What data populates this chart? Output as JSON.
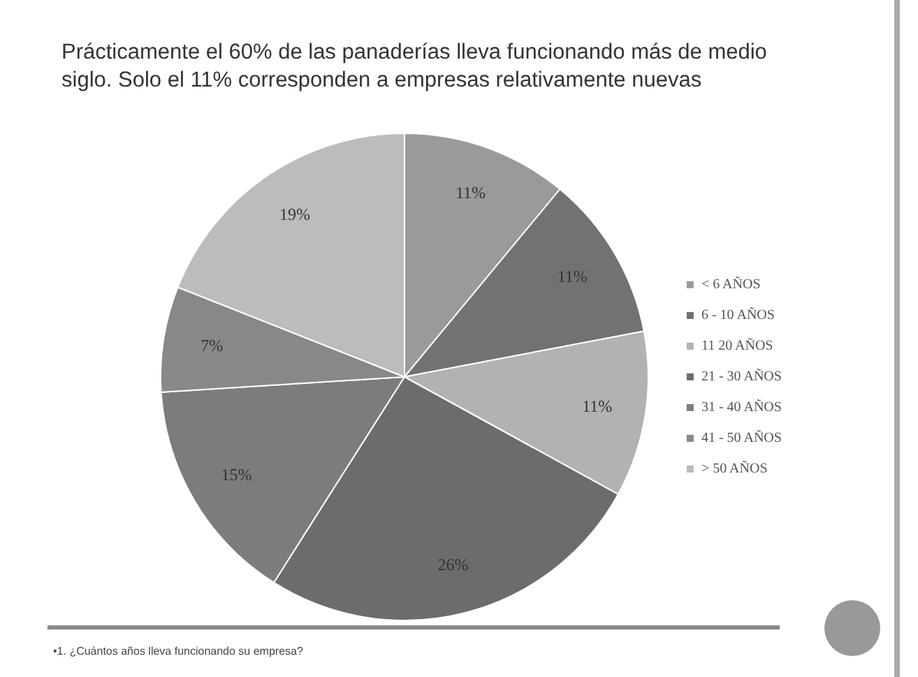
{
  "chart_data": {
    "type": "pie",
    "title": "Prácticamente el 60% de las panaderías lleva funcionando más de medio siglo. Solo el 11% corresponden a empresas relativamente nuevas",
    "categories": [
      "< 6 AÑOS",
      "6 - 10 AÑOS",
      "11 20 AÑOS",
      "21 - 30 AÑOS",
      "31 - 40 AÑOS",
      "41 - 50 AÑOS",
      "> 50 AÑOS"
    ],
    "values": [
      11,
      11,
      11,
      26,
      15,
      7,
      19
    ],
    "value_labels": [
      "11%",
      "11%",
      "11%",
      "26%",
      "15%",
      "7%",
      "19%"
    ],
    "colors": [
      "#9a9a9a",
      "#727272",
      "#b2b2b2",
      "#6c6c6c",
      "#7c7c7c",
      "#888888",
      "#bcbcbc"
    ],
    "legend": "right",
    "annotations": [
      "•1. ¿Cuántos años lleva funcionando su empresa?"
    ]
  }
}
